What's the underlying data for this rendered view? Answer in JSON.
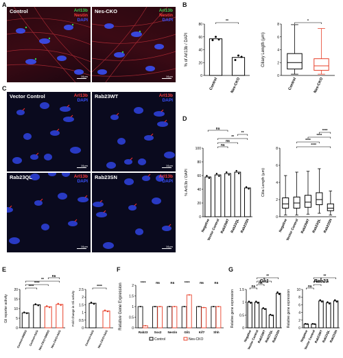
{
  "panels": {
    "A": {
      "label": "A",
      "images": [
        {
          "label": "Control",
          "channels": [
            "Arl13b",
            "Nestin",
            "DAPI"
          ],
          "scale": "10µm"
        },
        {
          "label": "Nes-CKO",
          "channels": [
            "Arl13b",
            "Nestin",
            "DAPI"
          ],
          "scale": "10µm"
        }
      ]
    },
    "B": {
      "label": "B"
    },
    "C": {
      "label": "C",
      "images": [
        {
          "label": "Vector Control",
          "channels": [
            "Arl13b",
            "DAPI"
          ],
          "scale": "10µm"
        },
        {
          "label": "Rab23WT",
          "channels": [
            "Arl13b",
            "DAPI"
          ],
          "scale": "10µm"
        },
        {
          "label": "Rab23QL",
          "channels": [
            "Arl13b",
            "DAPI"
          ],
          "scale": "10µm"
        },
        {
          "label": "Rab23SN",
          "channels": [
            "Arl13b",
            "DAPI"
          ],
          "scale": "10µm"
        }
      ]
    },
    "D": {
      "label": "D"
    },
    "E": {
      "label": "E"
    },
    "F": {
      "label": "F"
    },
    "G": {
      "label": "G"
    }
  },
  "colors": {
    "control": "#000000",
    "cko": "#e8402a",
    "dapi": "#3a52ff",
    "arl13b_green": "#39d353",
    "nestin_red": "#ff3b3b"
  },
  "chart_data": [
    {
      "id": "B-left",
      "type": "bar",
      "ylabel": "% of Arl13b / DAPI",
      "categories": [
        "Control",
        "Nes-CKO"
      ],
      "values": [
        57,
        28
      ],
      "points": [
        [
          55,
          60,
          56
        ],
        [
          24,
          31,
          29
        ]
      ],
      "ylim": [
        0,
        80
      ],
      "yticks": [
        0,
        20,
        40,
        60,
        80
      ],
      "significance": [
        {
          "from": 0,
          "to": 1,
          "label": "**"
        }
      ]
    },
    {
      "id": "B-right",
      "type": "box",
      "ylabel": "Ciliary Length (µm)",
      "categories": [
        "Control",
        "Nes-CKO"
      ],
      "boxes": [
        {
          "min": 0.2,
          "q1": 1.0,
          "median": 2.0,
          "q3": 3.4,
          "max": 7.9
        },
        {
          "min": 0.2,
          "q1": 0.8,
          "median": 1.5,
          "q3": 2.6,
          "max": 7.3
        }
      ],
      "ylim": [
        0,
        8
      ],
      "yticks": [
        0,
        2,
        4,
        6,
        8
      ],
      "significance": [
        {
          "from": 0,
          "to": 1,
          "label": "*"
        }
      ]
    },
    {
      "id": "D-left",
      "type": "bar",
      "ylabel": "% Arl13b / DAPI",
      "categories": [
        "Negative",
        "Vector Control",
        "Rab23WT",
        "Rab23QL",
        "Rab23SN"
      ],
      "values": [
        58,
        61,
        63,
        65,
        42
      ],
      "ylim": [
        0,
        100
      ],
      "yticks": [
        0,
        20,
        40,
        60,
        80,
        100
      ],
      "significance": [
        {
          "from": 1,
          "to": 2,
          "label": "ns"
        },
        {
          "from": 1,
          "to": 3,
          "label": "ns"
        },
        {
          "from": 1,
          "to": 4,
          "label": "**"
        },
        {
          "from": 3,
          "to": 4,
          "label": "**"
        },
        {
          "from": 0,
          "to": 2,
          "label": "ns"
        }
      ]
    },
    {
      "id": "D-right",
      "type": "box",
      "ylabel": "Cilia Length (µm)",
      "categories": [
        "Negative",
        "Vector Control",
        "Rab23WT",
        "Rab23QL",
        "Rab23SN"
      ],
      "boxes": [
        {
          "min": 0.2,
          "q1": 1.0,
          "median": 1.5,
          "q3": 2.2,
          "max": 4.8
        },
        {
          "min": 0.2,
          "q1": 1.0,
          "median": 1.6,
          "q3": 2.3,
          "max": 5.2
        },
        {
          "min": 0.3,
          "q1": 1.1,
          "median": 1.7,
          "q3": 2.5,
          "max": 5.3
        },
        {
          "min": 0.4,
          "q1": 1.4,
          "median": 2.0,
          "q3": 2.8,
          "max": 5.6
        },
        {
          "min": 0.2,
          "q1": 0.7,
          "median": 1.0,
          "q3": 1.5,
          "max": 3.0
        }
      ],
      "ylim": [
        0,
        8
      ],
      "yticks": [
        0,
        2,
        4,
        6,
        8
      ],
      "significance": [
        {
          "from": 1,
          "to": 4,
          "label": "****"
        },
        {
          "from": 1,
          "to": 3,
          "label": "****"
        },
        {
          "from": 2,
          "to": 4,
          "label": "****"
        },
        {
          "from": 3,
          "to": 4,
          "label": "****"
        }
      ]
    },
    {
      "id": "E-left",
      "type": "bar",
      "ylabel": "Gli reporter activity",
      "categories": [
        "Control+DMSO",
        "Control+SAG",
        "Nes-CKO+DMSO",
        "Nes-CKO+SAG"
      ],
      "colors": [
        "#000000",
        "#000000",
        "#e8402a",
        "#e8402a"
      ],
      "values": [
        7.8,
        12.0,
        11.0,
        12.2
      ],
      "ylim": [
        0,
        20
      ],
      "yticks": [
        0,
        5,
        10,
        15,
        20
      ],
      "significance": [
        {
          "from": 0,
          "to": 1,
          "label": "****"
        },
        {
          "from": 0,
          "to": 2,
          "label": "****"
        },
        {
          "from": 0,
          "to": 3,
          "label": "**"
        },
        {
          "from": 2,
          "to": 3,
          "label": "ns"
        }
      ]
    },
    {
      "id": "E-right",
      "type": "bar",
      "ylabel": "Fold Change in Gli activity",
      "categories": [
        "Control+SAG",
        "Nes-CKO+SAG"
      ],
      "colors": [
        "#000000",
        "#e8402a"
      ],
      "values": [
        1.6,
        1.1
      ],
      "ylim": [
        0,
        2.5
      ],
      "yticks": [
        0,
        0.5,
        1.0,
        1.5,
        2.0,
        2.5
      ],
      "significance": [
        {
          "from": 0,
          "to": 1,
          "label": "****"
        }
      ]
    },
    {
      "id": "F",
      "type": "bar",
      "ylabel": "Relative Gene Expression",
      "categories": [
        "Rab23",
        "Sox2",
        "Nestin",
        "Gli1",
        "Kif7",
        "Shh"
      ],
      "series": [
        {
          "name": "Control",
          "color": "#000000",
          "values": [
            1.0,
            1.0,
            1.0,
            1.0,
            1.0,
            1.0
          ]
        },
        {
          "name": "Nes-CKO",
          "color": "#e8402a",
          "values": [
            0.1,
            1.0,
            1.0,
            1.55,
            0.95,
            1.0
          ]
        }
      ],
      "ylim": [
        0,
        2.0
      ],
      "yticks": [
        0,
        0.5,
        1.0,
        1.5,
        2.0
      ],
      "significance": [
        {
          "cat": 0,
          "label": "****"
        },
        {
          "cat": 1,
          "label": "ns"
        },
        {
          "cat": 2,
          "label": "ns"
        },
        {
          "cat": 3,
          "label": "****"
        },
        {
          "cat": 4,
          "label": "ns"
        },
        {
          "cat": 5,
          "label": "ns"
        }
      ]
    },
    {
      "id": "G-left",
      "type": "bar",
      "title": "Gli1",
      "ylabel": "Relative gene expression",
      "categories": [
        "Negative",
        "Vector Control",
        "Rab23WT",
        "Rab23QL",
        "Rab23SN"
      ],
      "values": [
        1.0,
        1.0,
        0.75,
        0.5,
        1.35
      ],
      "ylim": [
        0,
        1.5
      ],
      "yticks": [
        0,
        0.5,
        1.0,
        1.5
      ],
      "significance": [
        {
          "from": 0,
          "to": 1,
          "label": "ns"
        },
        {
          "from": 1,
          "to": 2,
          "label": "ns"
        },
        {
          "from": 1,
          "to": 3,
          "label": "*"
        },
        {
          "from": 1,
          "to": 4,
          "label": "**"
        }
      ]
    },
    {
      "id": "G-right",
      "type": "bar",
      "title": "Rab23",
      "ylabel": "Relative gene expression",
      "categories": [
        "Negative",
        "Vector Control",
        "Rab23WT",
        "Rab23QL",
        "Rab23SN"
      ],
      "values": [
        1.0,
        1.0,
        7.0,
        6.5,
        7.0
      ],
      "ylim": [
        0,
        10
      ],
      "yticks": [
        0,
        2,
        4,
        6,
        8,
        10
      ],
      "significance": [
        {
          "from": 0,
          "to": 1,
          "label": "ns"
        },
        {
          "from": 1,
          "to": 2,
          "label": "**"
        },
        {
          "from": 1,
          "to": 3,
          "label": "*"
        },
        {
          "from": 1,
          "to": 4,
          "label": "**"
        }
      ]
    }
  ]
}
